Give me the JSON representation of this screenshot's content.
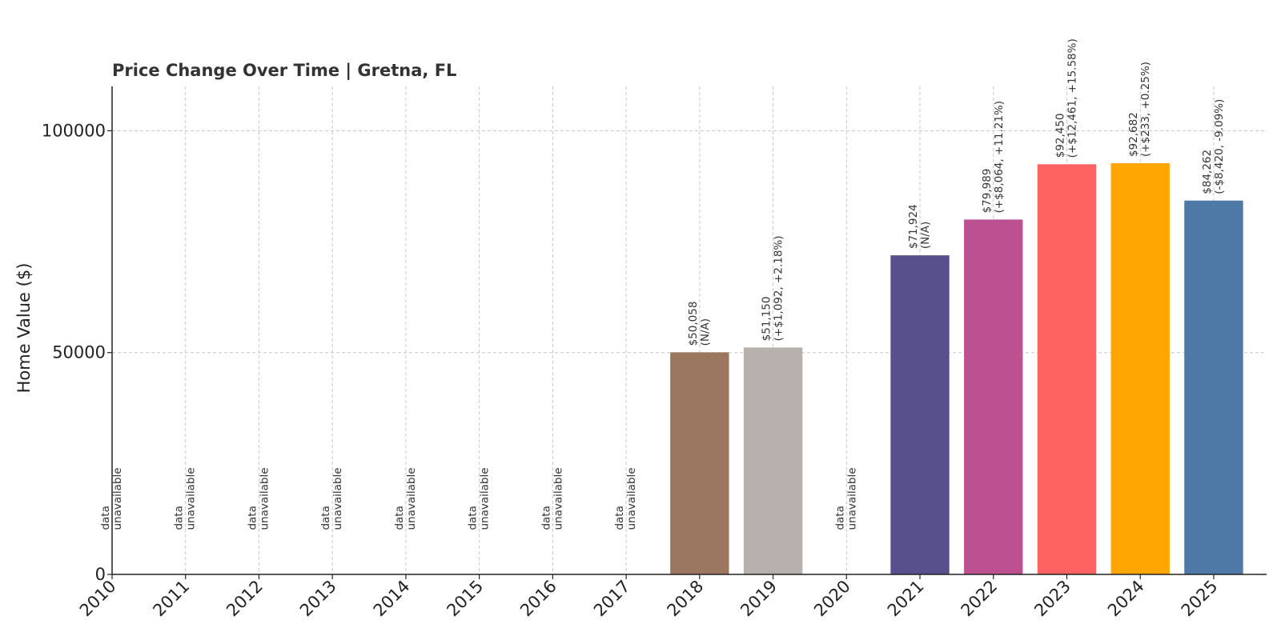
{
  "chart_data": {
    "type": "bar",
    "title": "Price Change Over Time | Gretna, FL",
    "xlabel": "",
    "ylabel": "Home Value ($)",
    "ylim": [
      0,
      110000
    ],
    "yticks": [
      0,
      50000,
      100000
    ],
    "yticks_labels": [
      "0",
      "50000",
      "100000"
    ],
    "grid": true,
    "categories": [
      "2010",
      "2011",
      "2012",
      "2013",
      "2014",
      "2015",
      "2016",
      "2017",
      "2018",
      "2019",
      "2020",
      "2021",
      "2022",
      "2023",
      "2024",
      "2025"
    ],
    "values": [
      null,
      null,
      null,
      null,
      null,
      null,
      null,
      null,
      50058,
      51150,
      null,
      71924,
      79989,
      92450,
      92682,
      84262
    ],
    "labels_line1": [
      "data",
      "data",
      "data",
      "data",
      "data",
      "data",
      "data",
      "data",
      "$50,058",
      "$51,150",
      "data",
      "$71,924",
      "$79,989",
      "$92,450",
      "$92,682",
      "$84,262"
    ],
    "labels_line2": [
      "unavailable",
      "unavailable",
      "unavailable",
      "unavailable",
      "unavailable",
      "unavailable",
      "unavailable",
      "unavailable",
      "(N/A)",
      "(+$1,092, +2.18%)",
      "unavailable",
      "(N/A)",
      "(+$8,064, +11.21%)",
      "(+$12,461, +15.58%)",
      "(+$233, +0.25%)",
      "(-$8,420, -9.09%)"
    ],
    "colors": [
      null,
      null,
      null,
      null,
      null,
      null,
      null,
      null,
      "#9c7760",
      "#b8b0ac",
      null,
      "#58508d",
      "#bc5090",
      "#ff6361",
      "#ffa600",
      "#4e79a7"
    ]
  }
}
